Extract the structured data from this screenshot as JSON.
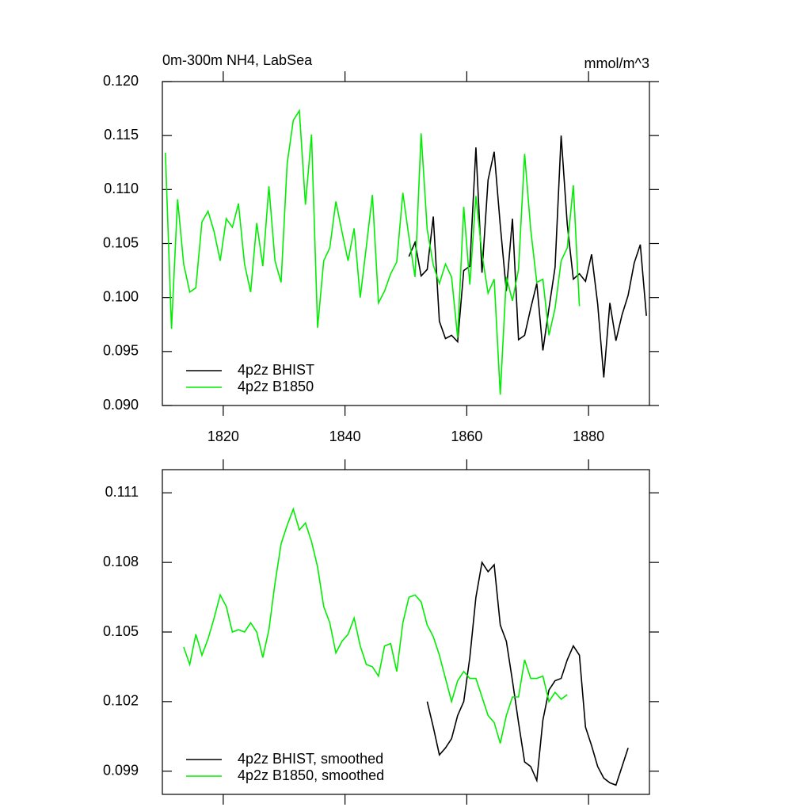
{
  "chart_data": [
    {
      "type": "line",
      "title": "0m-300m NH4, LabSea",
      "units": "mmol/m^3",
      "xlim": [
        1810,
        1890
      ],
      "xticks": [
        1820,
        1840,
        1860,
        1880
      ],
      "xtick_labels": true,
      "ylim": [
        0.09,
        0.12
      ],
      "yticks": [
        {
          "value": 0.09,
          "label": "0.090"
        },
        0.095,
        {
          "value": 0.1,
          "label": "0.100"
        },
        0.105,
        {
          "value": 0.11,
          "label": "0.110"
        },
        0.115,
        {
          "value": 0.12,
          "label": "0.120"
        }
      ],
      "legend": "lower left",
      "series": [
        {
          "name": "4p2z BHIST",
          "color": "#000000",
          "x": [
            1850.5,
            1851.5,
            1852.5,
            1853.5,
            1854.5,
            1855.5,
            1856.5,
            1857.5,
            1858.5,
            1859.5,
            1860.5,
            1861.5,
            1862.5,
            1863.5,
            1864.5,
            1865.5,
            1866.5,
            1867.5,
            1868.5,
            1869.5,
            1870.5,
            1871.5,
            1872.5,
            1873.5,
            1874.5,
            1875.5,
            1876.5,
            1877.5,
            1878.5,
            1879.5,
            1880.5,
            1881.5,
            1882.5,
            1883.5,
            1884.5,
            1885.5,
            1886.5,
            1887.5,
            1888.5,
            1889.5
          ],
          "values": [
            0.1038,
            0.1051,
            0.102,
            0.1026,
            0.1075,
            0.0978,
            0.0962,
            0.0965,
            0.0959,
            0.1025,
            0.1029,
            0.1139,
            0.1023,
            0.1109,
            0.1135,
            0.1067,
            0.1006,
            0.1073,
            0.0961,
            0.0965,
            0.099,
            0.1013,
            0.0951,
            0.099,
            0.1028,
            0.115,
            0.1068,
            0.1017,
            0.1022,
            0.1015,
            0.104,
            0.0994,
            0.0926,
            0.0995,
            0.096,
            0.0984,
            0.1002,
            0.1032,
            0.1049,
            0.0983
          ]
        },
        {
          "name": "4p2z B1850",
          "color": "#00ee00",
          "x": [
            1810.5,
            1811.5,
            1812.5,
            1813.5,
            1814.5,
            1815.5,
            1816.5,
            1817.5,
            1818.5,
            1819.5,
            1820.5,
            1821.5,
            1822.5,
            1823.5,
            1824.5,
            1825.5,
            1826.5,
            1827.5,
            1828.5,
            1829.5,
            1830.5,
            1831.5,
            1832.5,
            1833.5,
            1834.5,
            1835.5,
            1836.5,
            1837.5,
            1838.5,
            1839.5,
            1840.5,
            1841.5,
            1842.5,
            1843.5,
            1844.5,
            1845.5,
            1846.5,
            1847.5,
            1848.5,
            1849.5,
            1850.5,
            1851.5,
            1852.5,
            1853.5,
            1854.5,
            1855.5,
            1856.5,
            1857.5,
            1858.5,
            1859.5,
            1860.5,
            1861.5,
            1862.5,
            1863.5,
            1864.5,
            1865.5,
            1866.5,
            1867.5,
            1868.5,
            1869.5,
            1870.5,
            1871.5,
            1872.5,
            1873.5,
            1874.5,
            1875.5,
            1876.5,
            1877.5,
            1878.5
          ],
          "values": [
            0.1134,
            0.0971,
            0.1091,
            0.1031,
            0.1005,
            0.1009,
            0.107,
            0.108,
            0.1061,
            0.1034,
            0.1073,
            0.1065,
            0.1087,
            0.1031,
            0.1005,
            0.1069,
            0.1029,
            0.1103,
            0.1034,
            0.1014,
            0.1124,
            0.1164,
            0.1173,
            0.1086,
            0.1151,
            0.0972,
            0.1034,
            0.1046,
            0.1089,
            0.1061,
            0.1034,
            0.1064,
            0.1,
            0.1047,
            0.1095,
            0.0995,
            0.1006,
            0.1022,
            0.1033,
            0.1097,
            0.1056,
            0.1019,
            0.1152,
            0.1063,
            0.103,
            0.1013,
            0.1031,
            0.1019,
            0.0963,
            0.1084,
            0.1012,
            0.1094,
            0.104,
            0.1004,
            0.1017,
            0.091,
            0.1019,
            0.0997,
            0.1026,
            0.1133,
            0.1063,
            0.1014,
            0.1017,
            0.0965,
            0.099,
            0.1034,
            0.1046,
            0.1104,
            0.0992
          ]
        }
      ]
    },
    {
      "type": "line",
      "xlim": [
        1810,
        1890
      ],
      "xticks": [
        1820,
        1840,
        1860,
        1880
      ],
      "xtick_labels": false,
      "ylim": [
        0.098,
        0.112
      ],
      "yticks": [
        0.099,
        0.102,
        0.105,
        0.108,
        0.111
      ],
      "legend": "lower left",
      "series": [
        {
          "name": "4p2z BHIST, smoothed",
          "color": "#000000",
          "x": [
            1853.5,
            1854.5,
            1855.5,
            1856.5,
            1857.5,
            1858.5,
            1859.5,
            1860.5,
            1861.5,
            1862.5,
            1863.5,
            1864.5,
            1865.5,
            1866.5,
            1867.5,
            1868.5,
            1869.5,
            1870.5,
            1871.5,
            1872.5,
            1873.5,
            1874.5,
            1875.5,
            1876.5,
            1877.5,
            1878.5,
            1879.5,
            1880.5,
            1881.5,
            1882.5,
            1883.5,
            1884.5,
            1885.5,
            1886.5
          ],
          "values": [
            0.102,
            0.1009,
            0.0997,
            0.1,
            0.1004,
            0.1014,
            0.102,
            0.1039,
            0.1065,
            0.108,
            0.1076,
            0.1079,
            0.1053,
            0.1046,
            0.1029,
            0.1011,
            0.0994,
            0.0992,
            0.0986,
            0.1012,
            0.1025,
            0.1029,
            0.103,
            0.1038,
            0.1044,
            0.104,
            0.1009,
            0.1001,
            0.0992,
            0.0987,
            0.0985,
            0.0984,
            0.0992,
            0.1
          ]
        },
        {
          "name": "4p2z B1850, smoothed",
          "color": "#00ee00",
          "x": [
            1813.5,
            1814.5,
            1815.5,
            1816.5,
            1817.5,
            1818.5,
            1819.5,
            1820.5,
            1821.5,
            1822.5,
            1823.5,
            1824.5,
            1825.5,
            1826.5,
            1827.5,
            1828.5,
            1829.5,
            1830.5,
            1831.5,
            1832.5,
            1833.5,
            1834.5,
            1835.5,
            1836.5,
            1837.5,
            1838.5,
            1839.5,
            1840.5,
            1841.5,
            1842.5,
            1843.5,
            1844.5,
            1845.5,
            1846.5,
            1847.5,
            1848.5,
            1849.5,
            1850.5,
            1851.5,
            1852.5,
            1853.5,
            1854.5,
            1855.5,
            1856.5,
            1857.5,
            1858.5,
            1859.5,
            1860.5,
            1861.5,
            1862.5,
            1863.5,
            1864.5,
            1865.5,
            1866.5,
            1867.5,
            1868.5,
            1869.5,
            1870.5,
            1871.5,
            1872.5,
            1873.5,
            1874.5,
            1875.5,
            1876.5
          ],
          "values": [
            0.10435,
            0.1036,
            0.1049,
            0.104,
            0.1047,
            0.1056,
            0.1066,
            0.1061,
            0.105,
            0.1051,
            0.105,
            0.1054,
            0.105,
            0.1039,
            0.1051,
            0.1071,
            0.1088,
            0.1096,
            0.1103,
            0.1094,
            0.1097,
            0.1089,
            0.1078,
            0.1061,
            0.1054,
            0.1041,
            0.1046,
            0.1049,
            0.1056,
            0.1044,
            0.1036,
            0.1035,
            0.1031,
            0.1044,
            0.1045,
            0.1033,
            0.1054,
            0.1065,
            0.1066,
            0.1063,
            0.1053,
            0.1048,
            0.104,
            0.103,
            0.102,
            0.1029,
            0.1033,
            0.103,
            0.103,
            0.1022,
            0.1014,
            0.1011,
            0.1002,
            0.1014,
            0.1022,
            0.1022,
            0.1038,
            0.103,
            0.103,
            0.1031,
            0.102,
            0.1024,
            0.1021,
            0.1023
          ]
        }
      ]
    }
  ]
}
